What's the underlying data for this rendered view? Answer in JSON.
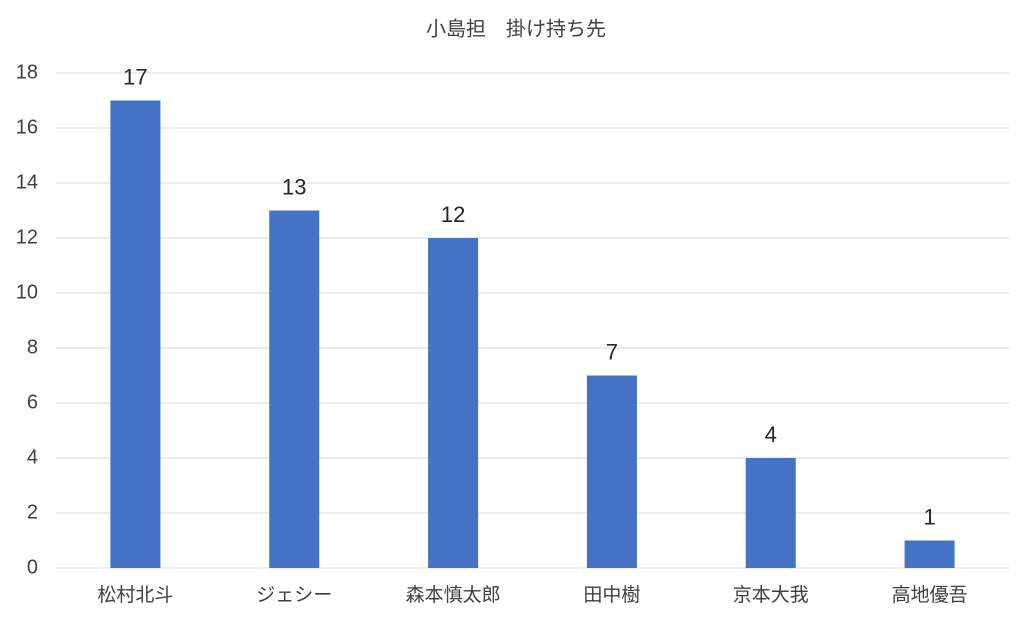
{
  "chart_data": {
    "type": "bar",
    "title": "小島担　掛け持ち先",
    "categories": [
      "松村北斗",
      "ジェシー",
      "森本慎太郎",
      "田中樹",
      "京本大我",
      "高地優吾"
    ],
    "values": [
      17,
      13,
      12,
      7,
      4,
      1
    ],
    "color": "#4472c4",
    "ylim": [
      0,
      18
    ],
    "yticks": [
      0,
      2,
      4,
      6,
      8,
      10,
      12,
      14,
      16,
      18
    ],
    "grid": true
  }
}
